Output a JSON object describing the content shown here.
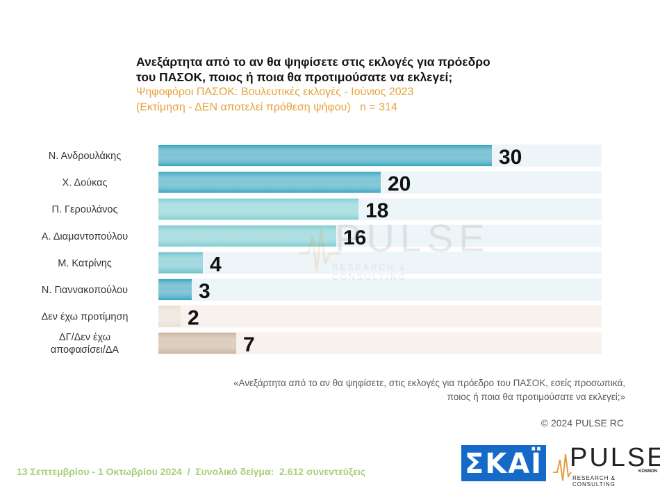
{
  "title_line1": "Ανεξάρτητα από το αν θα ψηφίσετε στις εκλογές για πρόεδρο",
  "title_line2": "του ΠΑΣΟΚ, ποιος ή ποια θα προτιμούσατε να εκλεγεί;",
  "subtitle_line1": "Ψηφοφόροι ΠΑΣΟΚ: Βουλευτικές εκλογές - Ιούνιος 2023",
  "subtitle_line2": "(Εκτίμηση - ΔΕΝ αποτελεί πρόθεση ψήφου)   n = 314",
  "chart_data": {
    "type": "bar",
    "orientation": "horizontal",
    "categories": [
      [
        "Ν. Ανδρουλάκης"
      ],
      [
        "Χ. Δούκας"
      ],
      [
        "Π. Γερουλάνος"
      ],
      [
        "Α. Διαμαντοπούλου"
      ],
      [
        "Μ. Κατρίνης"
      ],
      [
        "Ν. Γιαννακοπούλου"
      ],
      [
        "Δεν έχω προτίμηση"
      ],
      [
        "ΔΓ/Δεν έχω",
        "αποφασίσει/ΔΑ"
      ]
    ],
    "values": [
      30,
      20,
      18,
      16,
      4,
      3,
      2,
      7
    ],
    "xlim": [
      0,
      30
    ],
    "bar_colors": [
      "#35a3bd",
      "#3aa6bf",
      "#7fcfd2",
      "#7cccd0",
      "#6cc2cc",
      "#39a3c0",
      "#e8ded2",
      "#c9b29a"
    ],
    "band_colors": [
      "#eef5f8",
      "#eef5f8",
      "#eef5f8",
      "#eef5f8",
      "#eef5f8",
      "#eef5f8",
      "#f8f1ee",
      "#f8f1ee"
    ]
  },
  "watermark": {
    "word": "PULSE",
    "sub": "RESEARCH & CONSULTING"
  },
  "footnote_line1": "«Ανεξάρτητα από το αν θα ψηφίσετε, στις εκλογές για πρόεδρο του ΠΑΣΟΚ, εσείς προσωπικά,",
  "footnote_line2": "ποιος ή ποια θα προτιμούσατε να εκλεγεί;»",
  "copyright": "© 2024 PULSE RC",
  "date_sample": "13 Σεπτεμβρίου - 1 Οκτωβρίου 2024  /  Συνολικό δείγμα:  2.612 συνεντεύξεις",
  "skai_logo": "ΣΚΑΪ",
  "pulse_logo": {
    "word": "PULSE",
    "sub": "RESEARCH & CONSULTING",
    "kosmon": "KOSMON"
  }
}
